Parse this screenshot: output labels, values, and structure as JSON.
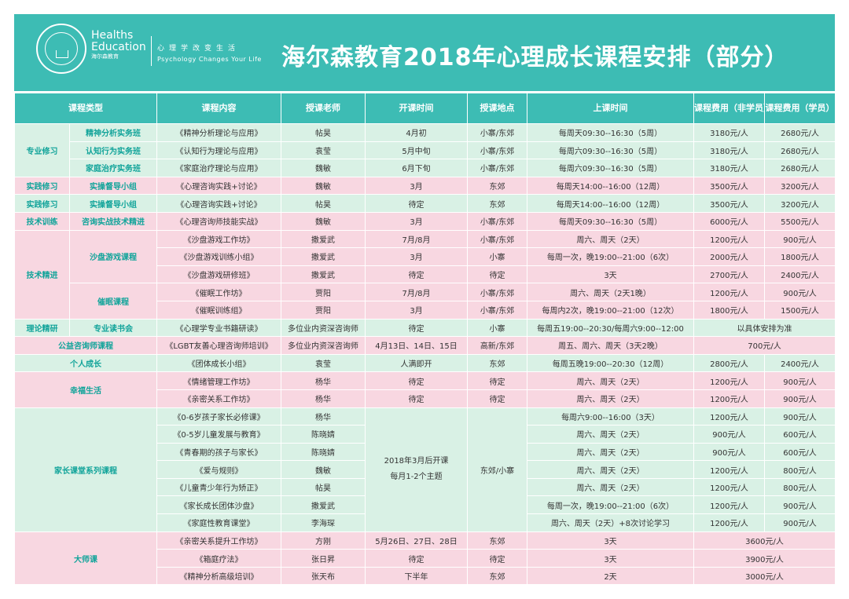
{
  "header": {
    "logo_line1": "Healths",
    "logo_line2": "Education",
    "logo_cn": "海尔森教育",
    "tagline_cn": "心理学改变生活",
    "tagline_en": "Psychology Changes Your Life",
    "title": "海尔森教育2018年心理成长课程安排（部分）"
  },
  "columns": [
    "课程类型",
    "课程内容",
    "授课老师",
    "开课时间",
    "授课地点",
    "上课时间",
    "课程费用（非学员）",
    "课程费用（学员）"
  ],
  "groups": {
    "zyxx": "专业修习",
    "sjxx": "实践修习",
    "jsxl": "技术训练",
    "jsjj": "技术精进",
    "llyj": "理论精研",
    "gyzx": "公益咨询师课程",
    "grcz": "个人成长",
    "xfsh": "幸福生活",
    "jzkt": "家长课堂系列课程",
    "dsk": "大师课"
  },
  "subs": {
    "jsfx": "精神分析实务班",
    "rzxw": "认知行为实务班",
    "jtzl": "家庭治疗实务班",
    "sczd": "实操督导小组",
    "zxss": "咨询实战技术精进",
    "spyx": "沙盘游戏课程",
    "cmkc": "催眠课程",
    "zydsh": "专业读书会"
  },
  "rows": [
    {
      "name": "《精神分析理论与应用》",
      "teacher": "帖昊",
      "start": "4月初",
      "place": "小寨/东郊",
      "time": "每周天09:30--16:30（5周）",
      "fee1": "3180元/人",
      "fee2": "2680元/人"
    },
    {
      "name": "《认知行为理论与应用》",
      "teacher": "袁莹",
      "start": "5月中旬",
      "place": "小寨/东郊",
      "time": "每周六09:30--16:30（5周）",
      "fee1": "3180元/人",
      "fee2": "2680元/人"
    },
    {
      "name": "《家庭治疗理论与应用》",
      "teacher": "魏敏",
      "start": "6月下旬",
      "place": "小寨/东郊",
      "time": "每周六09:30--16:30（5周）",
      "fee1": "3180元/人",
      "fee2": "2680元/人"
    },
    {
      "name": "《心理咨询实践+讨论》",
      "teacher": "魏敏",
      "start": "3月",
      "place": "东郊",
      "time": "每周天14:00--16:00（12周）",
      "fee1": "3500元/人",
      "fee2": "3200元/人"
    },
    {
      "name": "《心理咨询实践+讨论》",
      "teacher": "帖昊",
      "start": "待定",
      "place": "东郊",
      "time": "每周天14:00--16:00（12周）",
      "fee1": "3500元/人",
      "fee2": "3200元/人"
    },
    {
      "name": "《心理咨询师技能实战》",
      "teacher": "魏敏",
      "start": "3月",
      "place": "小寨/东郊",
      "time": "每周天09:30--16:30（5周）",
      "fee1": "6000元/人",
      "fee2": "5500元/人"
    },
    {
      "name": "《沙盘游戏工作坊》",
      "teacher": "撒爱武",
      "start": "7月/8月",
      "place": "小寨/东郊",
      "time": "周六、周天（2天）",
      "fee1": "1200元/人",
      "fee2": "900元/人"
    },
    {
      "name": "《沙盘游戏训练小组》",
      "teacher": "撒爱武",
      "start": "3月",
      "place": "小寨",
      "time": "每周一次，晚19:00--21:00（6次）",
      "fee1": "2000元/人",
      "fee2": "1800元/人"
    },
    {
      "name": "《沙盘游戏研修班》",
      "teacher": "撒爱武",
      "start": "待定",
      "place": "待定",
      "time": "3天",
      "fee1": "2700元/人",
      "fee2": "2400元/人"
    },
    {
      "name": "《催眠工作坊》",
      "teacher": "贾阳",
      "start": "7月/8月",
      "place": "小寨/东郊",
      "time": "周六、周天（2天1晚）",
      "fee1": "1200元/人",
      "fee2": "900元/人"
    },
    {
      "name": "《催眠训练组》",
      "teacher": "贾阳",
      "start": "3月",
      "place": "小寨/东郊",
      "time": "每周内2次，晚19:00--21:00（12次）",
      "fee1": "1800元/人",
      "fee2": "1500元/人"
    },
    {
      "name": "《心理学专业书籍研读》",
      "teacher": "多位业内资深咨询师",
      "start": "待定",
      "place": "小寨",
      "time": "每周五19:00--20:30/每周六9:00--12:00",
      "fee": "以具体安排为准"
    },
    {
      "name": "《LGBT友善心理咨询师培训》",
      "teacher": "多位业内资深咨询师",
      "start": "4月13日、14日、15日",
      "place": "高新/东郊",
      "time": "周五、周六、周天（3天2晚）",
      "fee": "700元/人"
    },
    {
      "name": "《团体成长小组》",
      "teacher": "袁莹",
      "start": "人满即开",
      "place": "东郊",
      "time": "每周五晚19:00--20:30（12周）",
      "fee1": "2800元/人",
      "fee2": "2400元/人"
    },
    {
      "name": "《情绪管理工作坊》",
      "teacher": "杨华",
      "start": "待定",
      "place": "待定",
      "time": "周六、周天（2天）",
      "fee1": "1200元/人",
      "fee2": "900元/人"
    },
    {
      "name": "《亲密关系工作坊》",
      "teacher": "杨华",
      "start": "待定",
      "place": "待定",
      "time": "周六、周天（2天）",
      "fee1": "1200元/人",
      "fee2": "900元/人"
    },
    {
      "name": "《0-6岁孩子家长必修课》",
      "teacher": "杨华",
      "start": "2018年3月后开课\n每月1-2个主题",
      "place": "东郊/小寨",
      "time": "每周六9:00--16:00（3天）",
      "fee1": "1200元/人",
      "fee2": "900元/人"
    },
    {
      "name": "《0-5岁儿童发展与教育》",
      "teacher": "陈晓婧",
      "time": "周六、周天（2天）",
      "fee1": "900元/人",
      "fee2": "600元/人"
    },
    {
      "name": "《青春期的孩子与家长》",
      "teacher": "陈晓婧",
      "time": "周六、周天（2天）",
      "fee1": "900元/人",
      "fee2": "600元/人"
    },
    {
      "name": "《爱与规则》",
      "teacher": "魏敏",
      "time": "周六、周天（2天）",
      "fee1": "1200元/人",
      "fee2": "800元/人"
    },
    {
      "name": "《儿童青少年行为矫正》",
      "teacher": "帖昊",
      "time": "周六、周天（2天）",
      "fee1": "1200元/人",
      "fee2": "800元/人"
    },
    {
      "name": "《家长成长团体沙盘》",
      "teacher": "撒爱武",
      "time": "每周一次，晚19:00--21:00（6次）",
      "fee1": "1200元/人",
      "fee2": "900元/人"
    },
    {
      "name": "《家庭性教育课堂》",
      "teacher": "李海琛",
      "time": "周六、周天（2天）+8次讨论学习",
      "fee1": "1200元/人",
      "fee2": "900元/人"
    },
    {
      "name": "《亲密关系提升工作坊》",
      "teacher": "方刚",
      "start": "5月26日、27日、28日",
      "place": "东郊",
      "time": "3天",
      "fee": "3600元/人"
    },
    {
      "name": "《箱庭疗法》",
      "teacher": "张日昇",
      "start": "待定",
      "place": "待定",
      "time": "3天",
      "fee": "3900元/人"
    },
    {
      "name": "《精神分析高级培训》",
      "teacher": "张天布",
      "start": "下半年",
      "place": "东郊",
      "time": "2天",
      "fee": "3000元/人"
    }
  ]
}
